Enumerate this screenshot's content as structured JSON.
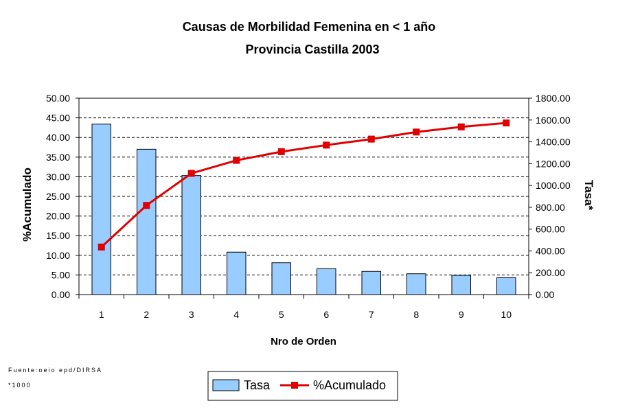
{
  "chart_data": {
    "type": "bar",
    "title": "Causas de Morbilidad Femenina en < 1 año",
    "subtitle": "Provincia Castilla 2003",
    "xlabel": "Nro de Orden",
    "ylabel_left": "%Acumulado",
    "ylabel_right": "Tasa*",
    "categories": [
      "1",
      "2",
      "3",
      "4",
      "5",
      "6",
      "7",
      "8",
      "9",
      "10"
    ],
    "ylim_left": [
      0,
      50
    ],
    "ylim_right": [
      0,
      1800
    ],
    "left_ticks": [
      "0.00",
      "5.00",
      "10.00",
      "15.00",
      "20.00",
      "25.00",
      "30.00",
      "35.00",
      "40.00",
      "45.00",
      "50.00"
    ],
    "right_ticks": [
      "0.00",
      "200.00",
      "400.00",
      "600.00",
      "800.00",
      "1000.00",
      "1200.00",
      "1400.00",
      "1600.00",
      "1800.00"
    ],
    "grid": true,
    "legend_position": "bottom",
    "series": [
      {
        "name": "Tasa",
        "type": "bar",
        "axis": "left",
        "color": "#99CCFF",
        "values": [
          43.4,
          37.0,
          30.3,
          10.8,
          8.1,
          6.6,
          5.9,
          5.3,
          4.9,
          4.3
        ]
      },
      {
        "name": "%Acumulado",
        "type": "line",
        "axis": "right",
        "color": "#E00000",
        "values": [
          436,
          817,
          1111,
          1230,
          1310,
          1370,
          1425,
          1490,
          1537,
          1573
        ]
      }
    ]
  },
  "footnotes": {
    "source": "Fuente:oeio epd/DIRSA",
    "note": "*1000"
  }
}
